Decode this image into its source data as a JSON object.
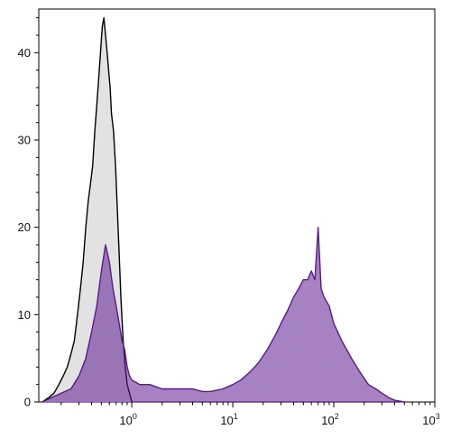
{
  "chart_data": {
    "type": "area",
    "title": "",
    "xlabel": "",
    "ylabel": "",
    "x_scale": "log",
    "xlim": [
      0.12,
      1000
    ],
    "ylim": [
      0,
      45
    ],
    "grid": false,
    "legend": "none",
    "x_ticks": [
      {
        "value": 1,
        "base": "10",
        "exp": "0"
      },
      {
        "value": 10,
        "base": "10",
        "exp": "1"
      },
      {
        "value": 100,
        "base": "10",
        "exp": "2"
      },
      {
        "value": 1000,
        "base": "10",
        "exp": "3"
      }
    ],
    "y_ticks": [
      {
        "value": 0,
        "label": "0"
      },
      {
        "value": 10,
        "label": "10"
      },
      {
        "value": 20,
        "label": "20"
      },
      {
        "value": 30,
        "label": "30"
      },
      {
        "value": 40,
        "label": "40"
      }
    ],
    "series": [
      {
        "color": "#000000",
        "fill": "#e2e2e2",
        "x": [
          0.13,
          0.15,
          0.17,
          0.19,
          0.21,
          0.23,
          0.25,
          0.27,
          0.29,
          0.31,
          0.33,
          0.35,
          0.37,
          0.39,
          0.41,
          0.43,
          0.45,
          0.47,
          0.49,
          0.51,
          0.53,
          0.55,
          0.57,
          0.59,
          0.61,
          0.63,
          0.66,
          0.69,
          0.72,
          0.75,
          0.78,
          0.82,
          0.86,
          0.9,
          0.95,
          1.0
        ],
        "values": [
          0,
          0.5,
          1,
          2,
          3,
          4,
          5.5,
          7,
          10,
          13,
          16,
          20,
          23,
          25,
          27,
          31,
          34,
          37,
          40,
          43,
          44,
          42,
          40,
          38,
          36,
          33,
          31,
          27,
          22,
          17,
          12,
          7,
          4,
          2,
          1,
          0
        ]
      },
      {
        "color": "#5a1a8c",
        "fill": "#5c1b8f",
        "x": [
          0.13,
          0.16,
          0.2,
          0.25,
          0.3,
          0.35,
          0.4,
          0.45,
          0.5,
          0.55,
          0.6,
          0.65,
          0.7,
          0.75,
          0.8,
          0.85,
          0.9,
          0.95,
          1.0,
          1.2,
          1.5,
          2,
          3,
          4,
          5,
          6,
          8,
          10,
          12,
          15,
          18,
          22,
          26,
          30,
          35,
          40,
          45,
          50,
          55,
          60,
          65,
          70,
          75,
          80,
          90,
          100,
          120,
          150,
          180,
          220,
          260,
          300,
          350,
          400,
          500
        ],
        "values": [
          0,
          0.5,
          1,
          1.5,
          3,
          5,
          8,
          11,
          15,
          18,
          16,
          13,
          11,
          9,
          7,
          6,
          4,
          3,
          2.5,
          2,
          2,
          1.5,
          1.5,
          1.5,
          1.2,
          1.2,
          1.5,
          2,
          2.5,
          3.5,
          4.5,
          6,
          7.5,
          9,
          10.5,
          12,
          13,
          14,
          14,
          15,
          14,
          20,
          13,
          12,
          11,
          9,
          7,
          5,
          3.5,
          2,
          1.5,
          1,
          0.5,
          0.2,
          0
        ]
      }
    ]
  }
}
